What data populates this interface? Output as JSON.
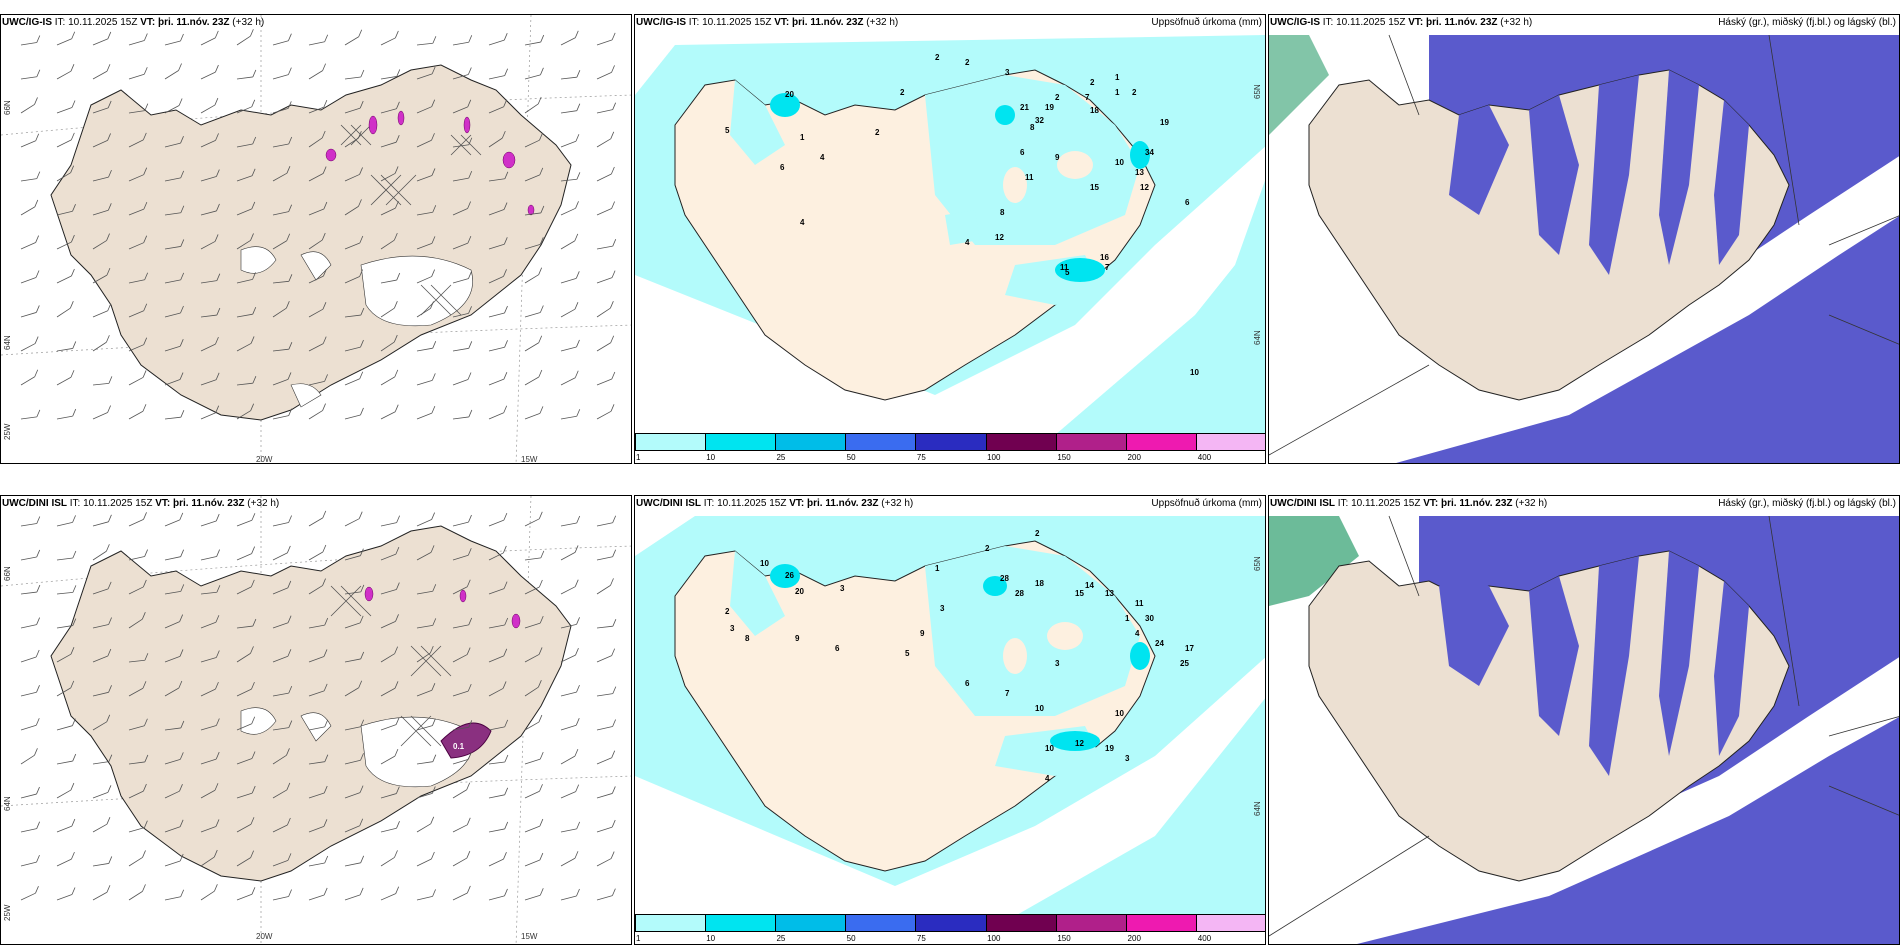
{
  "panels": [
    {
      "model": "UWC/IG-IS",
      "it": "IT: 10.11.2025 15Z",
      "vt_label": "VT:",
      "vt": "þri. 11.nóv. 23Z",
      "lead": "(+32 h)",
      "field": ""
    },
    {
      "model": "UWC/IG-IS",
      "it": "IT: 10.11.2025 15Z",
      "vt_label": "VT:",
      "vt": "þri. 11.nóv. 23Z",
      "lead": "(+32 h)",
      "field": "Uppsöfnuð úrkoma (mm)"
    },
    {
      "model": "UWC/IG-IS",
      "it": "IT: 10.11.2025 15Z",
      "vt_label": "VT:",
      "vt": "þri. 11.nóv. 23Z",
      "lead": "(+32 h)",
      "field": "Háský (gr.), miðský (fj.bl.) og lágský (bl.)"
    },
    {
      "model": "UWC/DINI ISL",
      "it": "IT: 10.11.2025 15Z",
      "vt_label": "VT:",
      "vt": "þri. 11.nóv. 23Z",
      "lead": "(+32 h)",
      "field": ""
    },
    {
      "model": "UWC/DINI ISL",
      "it": "IT: 10.11.2025 15Z",
      "vt_label": "VT:",
      "vt": "þri. 11.nóv. 23Z",
      "lead": "(+32 h)",
      "field": "Uppsöfnuð úrkoma (mm)"
    },
    {
      "model": "UWC/DINI ISL",
      "it": "IT: 10.11.2025 15Z",
      "vt_label": "VT:",
      "vt": "þri. 11.nóv. 23Z",
      "lead": "(+32 h)",
      "field": "Háský (gr.), miðský (fj.bl.) og lágský (bl.)"
    }
  ],
  "grid_labels": {
    "lat66": "66N",
    "lat64": "64N",
    "lat65": "65N",
    "lon20": "20W",
    "lon15": "15W",
    "lat25": "25W"
  },
  "colorbar": {
    "ticks": [
      "1",
      "10",
      "25",
      "50",
      "75",
      "100",
      "150",
      "200",
      "400"
    ],
    "colors": [
      "#b3fbfb",
      "#00e4f0",
      "#00bde8",
      "#3a6cf0",
      "#2a2cc0",
      "#700050",
      "#b0208a",
      "#ee1ab0",
      "#f4b6f4"
    ]
  },
  "precip_top": [
    "2",
    "2",
    "3",
    "2",
    "1",
    "4",
    "5",
    "6",
    "4",
    "2",
    "20",
    "21",
    "32",
    "19",
    "18",
    "7",
    "8",
    "6",
    "9",
    "11",
    "8",
    "12",
    "19",
    "34",
    "13",
    "12",
    "10",
    "15",
    "16",
    "11",
    "4",
    "2",
    "1",
    "1",
    "2",
    "2",
    "5",
    "7",
    "6",
    "10"
  ],
  "precip_bottom": [
    "2",
    "2",
    "1",
    "3",
    "10",
    "20",
    "26",
    "2",
    "3",
    "8",
    "9",
    "6",
    "28",
    "28",
    "18",
    "15",
    "14",
    "13",
    "11",
    "30",
    "24",
    "25",
    "17",
    "19",
    "12",
    "10",
    "1",
    "4",
    "7",
    "10",
    "3",
    "4",
    "6",
    "3",
    "10",
    "5",
    "3",
    "9"
  ],
  "wind_map_labels": {
    "top_value": "",
    "bottom_value": "0.1"
  },
  "colors": {
    "land": "#ece0d2",
    "precip_light": "#b3fbfb",
    "precip_mid": "#00e4f0",
    "cloud_low": "#5a5acc",
    "cloud_mid": "#8a8ae4",
    "cloud_high": "#2e9e6e"
  }
}
